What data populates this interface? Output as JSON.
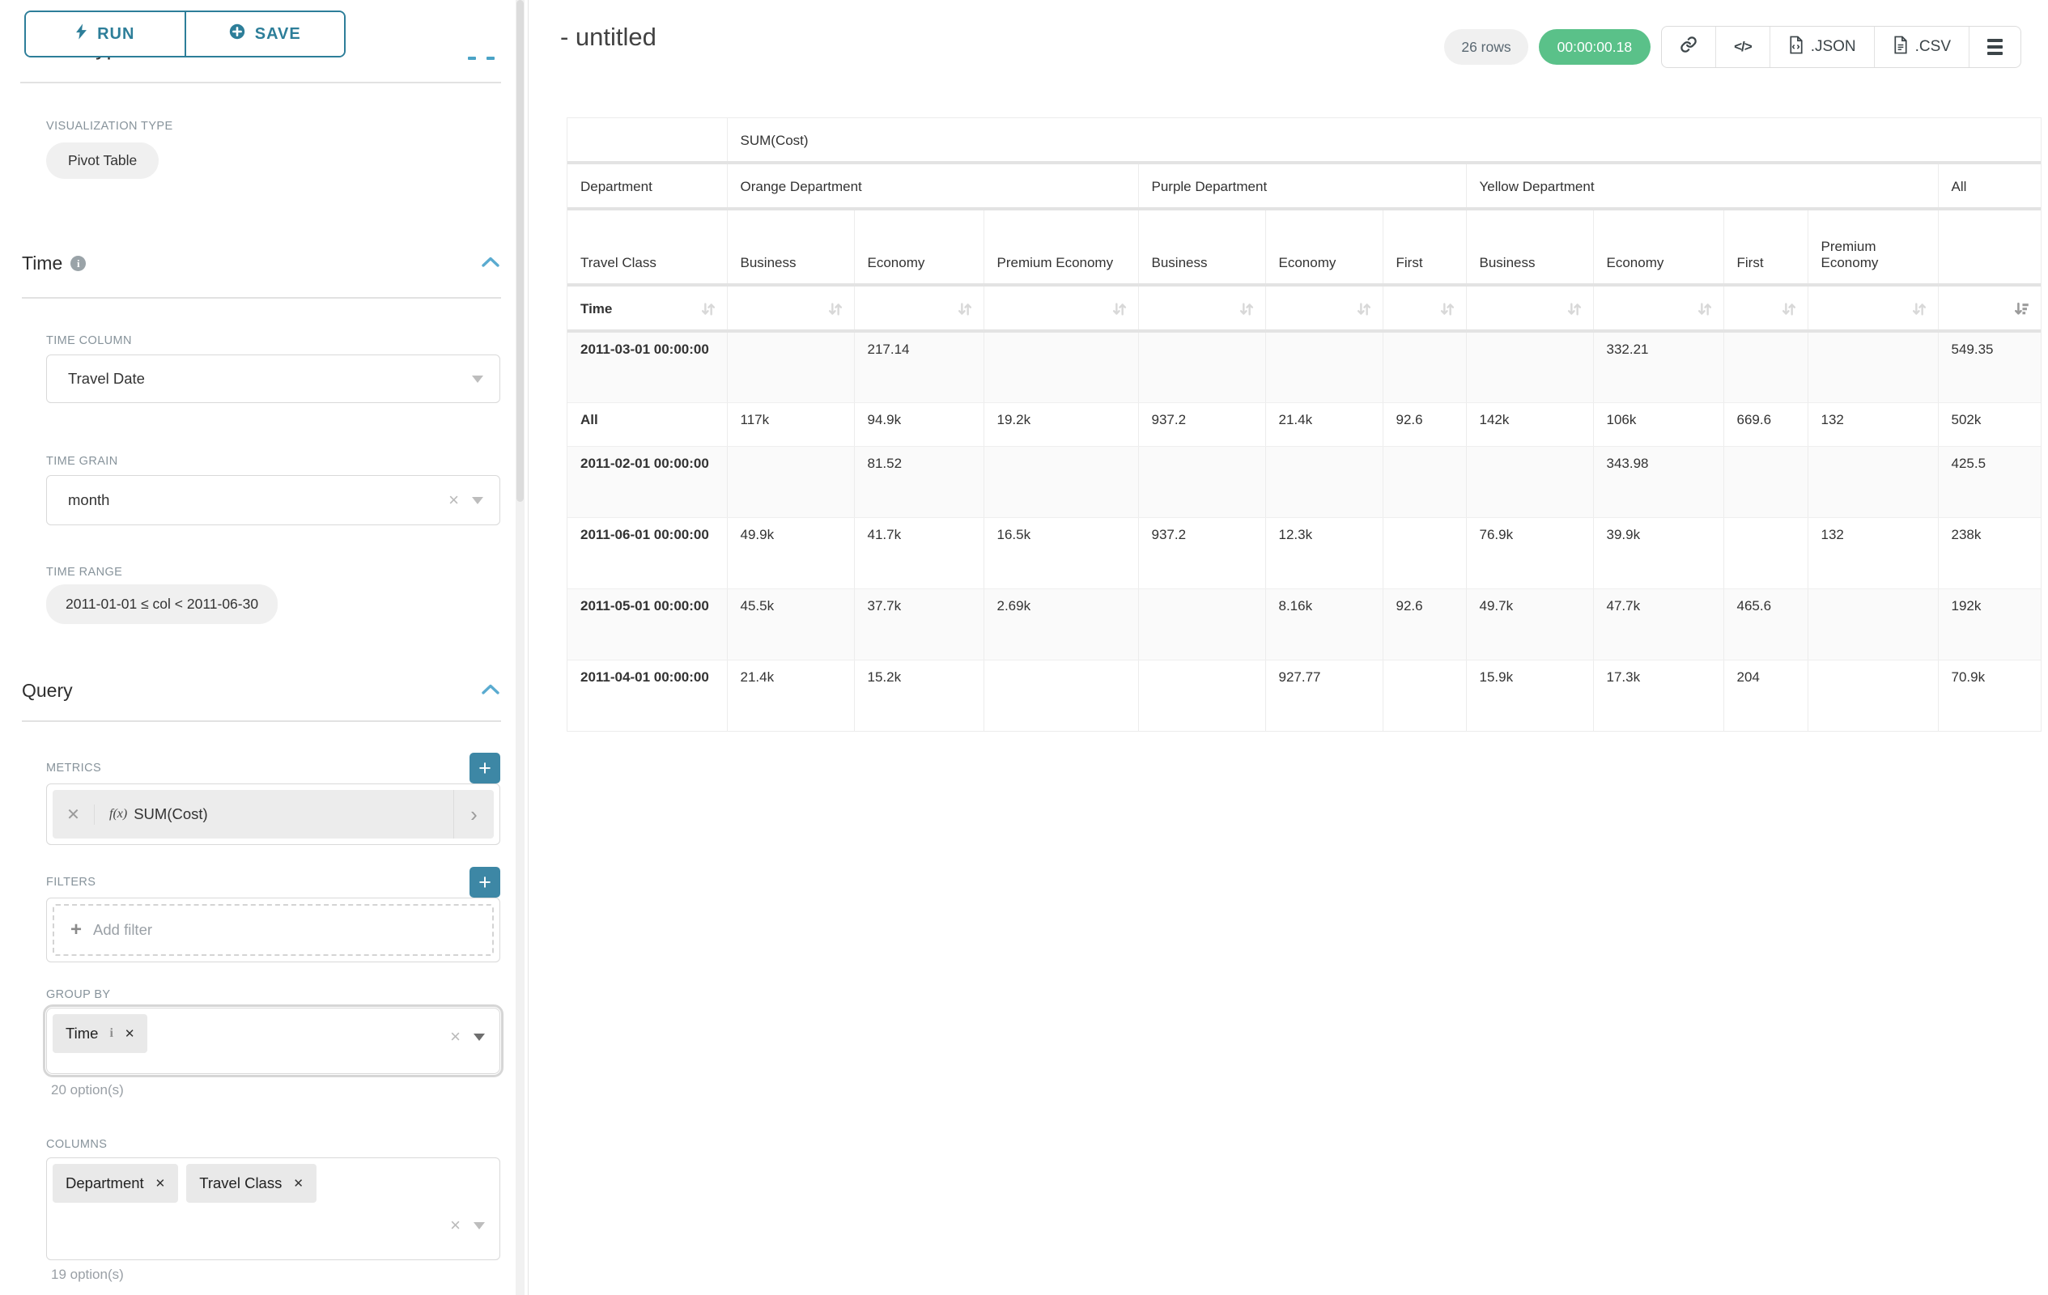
{
  "colors": {
    "accent": "#2d7e99",
    "chevron": "#5aabd0",
    "plus_button": "#3d87a5",
    "success": "#5ac189"
  },
  "sidebar": {
    "run_label": "RUN",
    "save_label": "SAVE",
    "clipped_heading": "Chart Type",
    "viz_type_label": "VISUALIZATION TYPE",
    "viz_type_value": "Pivot Table",
    "time_section": {
      "title": "Time",
      "time_column_label": "TIME COLUMN",
      "time_column_value": "Travel Date",
      "time_grain_label": "TIME GRAIN",
      "time_grain_value": "month",
      "time_range_label": "TIME RANGE",
      "time_range_value": "2011-01-01 ≤ col < 2011-06-30"
    },
    "query_section": {
      "title": "Query",
      "metrics_label": "METRICS",
      "metric_fx": "f(x)",
      "metric_value": "SUM(Cost)",
      "filters_label": "FILTERS",
      "add_filter_label": "Add filter",
      "group_by_label": "GROUP BY",
      "group_by_values": [
        "Time"
      ],
      "group_by_hint": "20 option(s)",
      "columns_label": "COLUMNS",
      "columns_values": [
        "Department",
        "Travel Class"
      ],
      "columns_hint": "19 option(s)"
    }
  },
  "header": {
    "title": "- untitled",
    "row_count_badge": "26 rows",
    "timer": "00:00:00.18",
    "json_label": ".JSON",
    "csv_label": ".CSV"
  },
  "chart_data": {
    "type": "table",
    "title": "SUM(Cost)",
    "row_dimension": "Time",
    "column_dimension_row1": "Department",
    "column_dimension_row2": "Travel Class",
    "sort": {
      "column": "All",
      "direction": "desc"
    },
    "column_groups": [
      {
        "department": "Orange Department",
        "classes": [
          "Business",
          "Economy",
          "Premium Economy"
        ]
      },
      {
        "department": "Purple Department",
        "classes": [
          "Business",
          "Economy",
          "First"
        ]
      },
      {
        "department": "Yellow Department",
        "classes": [
          "Business",
          "Economy",
          "First",
          "Premium Economy"
        ]
      },
      {
        "department": "All",
        "classes": [
          ""
        ]
      }
    ],
    "rows": [
      {
        "label": "2011-03-01 00:00:00",
        "values": [
          "",
          "217.14",
          "",
          "",
          "",
          "",
          "",
          "332.21",
          "",
          "",
          "549.35"
        ]
      },
      {
        "label": "All",
        "values": [
          "117k",
          "94.9k",
          "19.2k",
          "937.2",
          "21.4k",
          "92.6",
          "142k",
          "106k",
          "669.6",
          "132",
          "502k"
        ]
      },
      {
        "label": "2011-02-01 00:00:00",
        "values": [
          "",
          "81.52",
          "",
          "",
          "",
          "",
          "",
          "343.98",
          "",
          "",
          "425.5"
        ]
      },
      {
        "label": "2011-06-01 00:00:00",
        "values": [
          "49.9k",
          "41.7k",
          "16.5k",
          "937.2",
          "12.3k",
          "",
          "76.9k",
          "39.9k",
          "",
          "132",
          "238k"
        ]
      },
      {
        "label": "2011-05-01 00:00:00",
        "values": [
          "45.5k",
          "37.7k",
          "2.69k",
          "",
          "8.16k",
          "92.6",
          "49.7k",
          "47.7k",
          "465.6",
          "",
          "192k"
        ]
      },
      {
        "label": "2011-04-01 00:00:00",
        "values": [
          "21.4k",
          "15.2k",
          "",
          "",
          "927.77",
          "",
          "15.9k",
          "17.3k",
          "204",
          "",
          "70.9k"
        ]
      }
    ]
  }
}
